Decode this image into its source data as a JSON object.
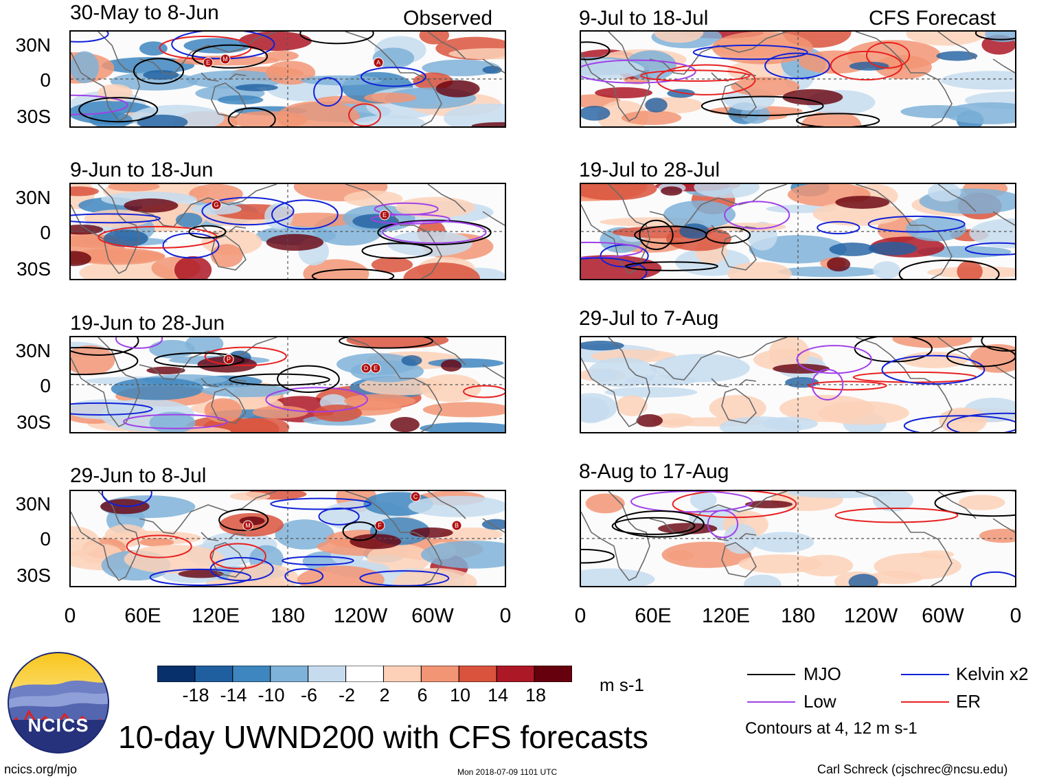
{
  "header": {
    "observed_label": "Observed",
    "forecast_label": "CFS Forecast"
  },
  "observed_panels": [
    {
      "title": "30-May to 8-Jun"
    },
    {
      "title": "9-Jun to 18-Jun"
    },
    {
      "title": "19-Jun to 28-Jun"
    },
    {
      "title": "29-Jun to 8-Jul"
    }
  ],
  "forecast_panels": [
    {
      "title": "9-Jul to 18-Jul"
    },
    {
      "title": "19-Jul to 28-Jul"
    },
    {
      "title": "29-Jul to 7-Aug"
    },
    {
      "title": "8-Aug to 17-Aug"
    }
  ],
  "lat_labels": [
    "30N",
    "0",
    "30S"
  ],
  "lon_labels": [
    "0",
    "60E",
    "120E",
    "180",
    "120W",
    "60W",
    "0"
  ],
  "colorbar": {
    "units": "m s-1",
    "levels": [
      "-18",
      "-14",
      "-10",
      "-6",
      "-2",
      "2",
      "6",
      "10",
      "14",
      "18"
    ],
    "colors": [
      "#08306b",
      "#1f5fa0",
      "#3e86bf",
      "#7fb2d8",
      "#c6dcee",
      "#ffffff",
      "#fcd1b8",
      "#f29574",
      "#d9533d",
      "#ad1826",
      "#67000d"
    ]
  },
  "legend": {
    "items": [
      {
        "label": "MJO",
        "color": "#000000"
      },
      {
        "label": "Kelvin x2",
        "color": "#1020d8"
      },
      {
        "label": "Low",
        "color": "#a040e8"
      },
      {
        "label": "ER",
        "color": "#e82020"
      }
    ],
    "note": "Contours at 4, 12 m s-1"
  },
  "footer": {
    "logo_text": "NCICS",
    "title": "10-day UWND200 with CFS forecasts",
    "url": "ncics.org/mjo",
    "timestamp": "Mon 2018-07-09 1101 UTC",
    "credit": "Carl Schreck (cjschrec@ncsu.edu)"
  },
  "storm_markers": [
    {
      "panel": 0,
      "letters": [
        "E",
        "M",
        "A"
      ]
    },
    {
      "panel": 1,
      "letters": [
        "G",
        "E"
      ]
    },
    {
      "panel": 2,
      "letters": [
        "P",
        "D",
        "E"
      ]
    },
    {
      "panel": 3,
      "letters": [
        "C",
        "M",
        "F",
        "B"
      ]
    }
  ]
}
